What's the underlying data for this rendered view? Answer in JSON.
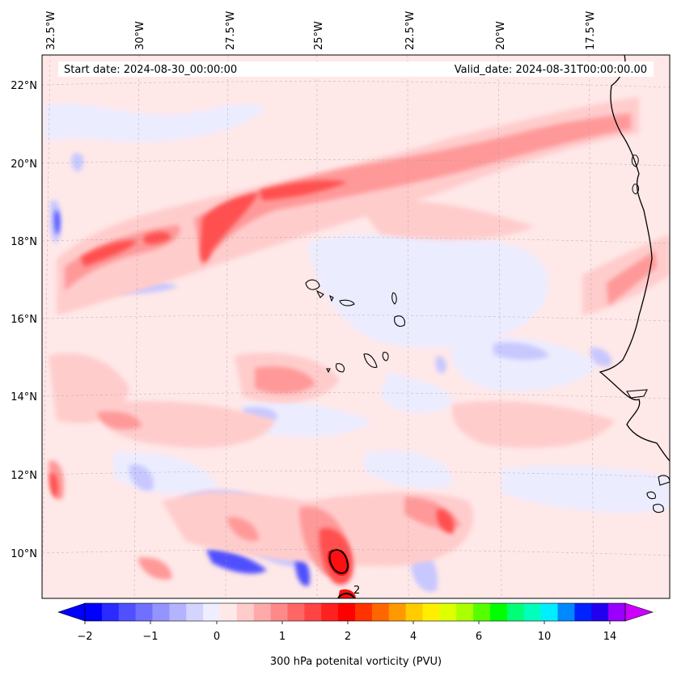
{
  "header": {
    "start_date": "Start date: 2024-08-30_00:00:00",
    "valid_date": "Valid_date: 2024-08-31T00:00:00.00"
  },
  "lon_ticks": [
    "32.5°W",
    "30°W",
    "27.5°W",
    "25°W",
    "22.5°W",
    "20°W",
    "17.5°W"
  ],
  "lat_ticks": [
    "22°N",
    "20°N",
    "18°N",
    "16°N",
    "14°N",
    "12°N",
    "10°N"
  ],
  "colorbar": {
    "label": "300 hPa potenital vorticity (PVU)",
    "tick_labels": [
      "−2",
      "−1",
      "0",
      "1",
      "2",
      "4",
      "6",
      "10",
      "14"
    ],
    "colors": [
      "#0000ff",
      "#2b2bff",
      "#5050ff",
      "#7070ff",
      "#9494ff",
      "#b3b3ff",
      "#d4d4ff",
      "#eeeeff",
      "#ffe8e8",
      "#ffcccc",
      "#ffaaaa",
      "#ff8888",
      "#ff6666",
      "#ff4444",
      "#ff2020",
      "#ff0000",
      "#ff3300",
      "#ff6600",
      "#ff9900",
      "#ffcc00",
      "#ffee00",
      "#ddff00",
      "#aaff00",
      "#55ff00",
      "#00ff00",
      "#00ff77",
      "#00ffbb",
      "#00eeff",
      "#0088ff",
      "#0022ff",
      "#2200ee",
      "#9900ff"
    ]
  },
  "colors": {
    "background_field": "#ffe8e8",
    "positive_light": "#ffcccc",
    "positive_mid": "#ff9999",
    "positive_strong": "#ff5050",
    "negative_light": "#ececff",
    "negative_mid": "#c8c8ff",
    "negative_strong": "#4040ff",
    "coastline": "#000000"
  },
  "annotations": {
    "contour_label": "2"
  }
}
